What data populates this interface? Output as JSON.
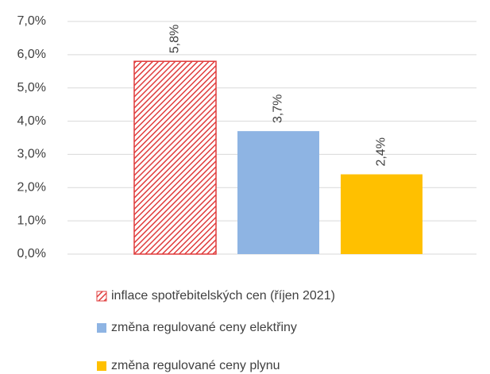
{
  "chart_data": {
    "type": "bar",
    "categories": [
      null
    ],
    "series": [
      {
        "name": "inflace spotřebitelských cen (říjen 2021)",
        "color": "#e03c3c",
        "pattern": "hatch",
        "values": [
          5.8
        ],
        "value_labels": [
          "5,8%"
        ]
      },
      {
        "name": "změna regulované ceny elektřiny",
        "color": "#8eb4e3",
        "values": [
          3.7
        ],
        "value_labels": [
          "3,7%"
        ]
      },
      {
        "name": "změna regulované ceny plynu",
        "color": "#ffc000",
        "values": [
          2.4
        ],
        "value_labels": [
          "2,4%"
        ]
      }
    ],
    "ylim": [
      0,
      7
    ],
    "yticks": [
      {
        "value": 0,
        "label": "0,0%"
      },
      {
        "value": 1,
        "label": "1,0%"
      },
      {
        "value": 2,
        "label": "2,0%"
      },
      {
        "value": 3,
        "label": "3,0%"
      },
      {
        "value": 4,
        "label": "4,0%"
      },
      {
        "value": 5,
        "label": "5,0%"
      },
      {
        "value": 6,
        "label": "6,0%"
      },
      {
        "value": 7,
        "label": "7,0%"
      }
    ],
    "grid": true,
    "legend": "bottom"
  }
}
